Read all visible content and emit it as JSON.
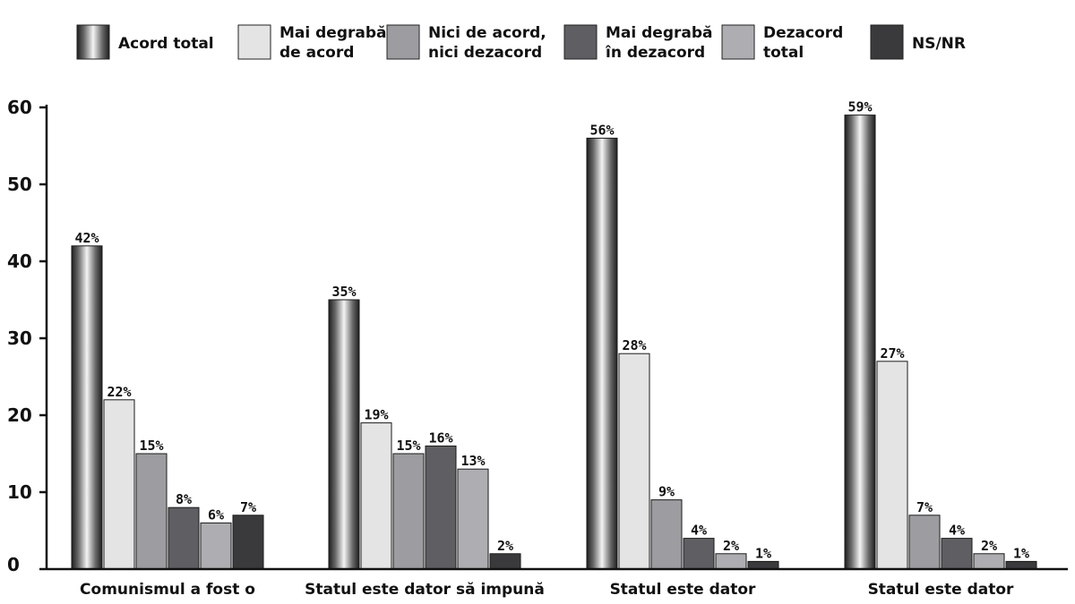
{
  "chart_data": {
    "type": "bar",
    "ylim": [
      0,
      60
    ],
    "yticks": [
      "0",
      "10",
      "20",
      "30",
      "40",
      "50",
      "60"
    ],
    "categories": [
      "Comunismul a fost o",
      "Statul este dator să impună",
      "Statul este dator",
      "Statul este dator"
    ],
    "series": [
      {
        "name_lines": [
          "Acord total"
        ],
        "color": "#8a8a8a",
        "values": [
          42,
          35,
          56,
          59
        ],
        "labels": [
          "42%",
          "35%",
          "56%",
          "59%"
        ]
      },
      {
        "name_lines": [
          "Mai degrabă",
          "de acord"
        ],
        "color": "#e4e4e4",
        "values": [
          22,
          19,
          28,
          27
        ],
        "labels": [
          "22%",
          "19%",
          "28%",
          "27%"
        ]
      },
      {
        "name_lines": [
          "Nici de acord,",
          "nici dezacord"
        ],
        "color": "#9d9da1",
        "values": [
          15,
          15,
          9,
          7
        ],
        "labels": [
          "15%",
          "15%",
          "9%",
          "7%"
        ]
      },
      {
        "name_lines": [
          "Mai degrabă",
          "în dezacord"
        ],
        "color": "#5e5e63",
        "values": [
          8,
          16,
          4,
          4
        ],
        "labels": [
          "8%",
          "16%",
          "4%",
          "4%"
        ]
      },
      {
        "name_lines": [
          "Dezacord",
          "total"
        ],
        "color": "#aeaeb2",
        "values": [
          6,
          13,
          2,
          2
        ],
        "labels": [
          "6%",
          "13%",
          "2%",
          "2%"
        ]
      },
      {
        "name_lines": [
          "NS/NR"
        ],
        "color": "#3a3a3c",
        "values": [
          7,
          2,
          1,
          1
        ],
        "labels": [
          "7%",
          "2%",
          "1%",
          "1%"
        ]
      }
    ],
    "legend": "top",
    "grid": false
  }
}
